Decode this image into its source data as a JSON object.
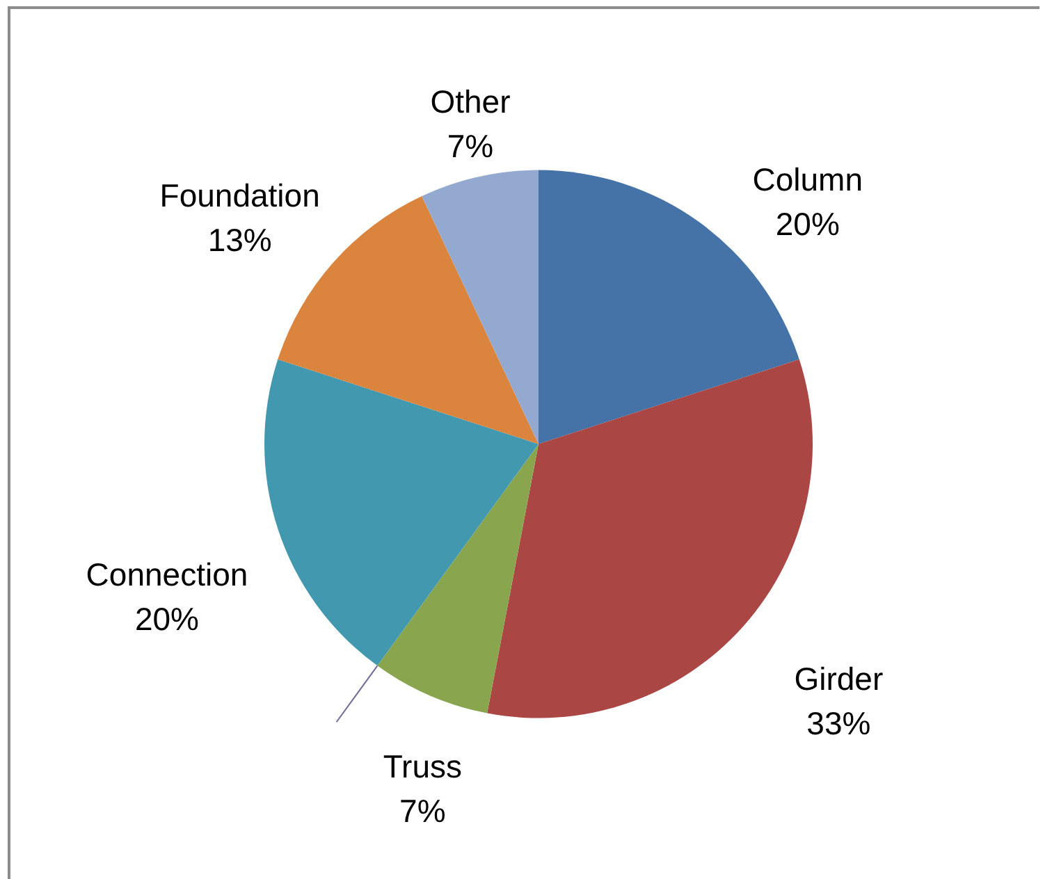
{
  "chart_data": {
    "type": "pie",
    "categories": [
      "Column",
      "Girder",
      "Truss",
      "Connection",
      "Foundation",
      "Other"
    ],
    "values": [
      20,
      33,
      7,
      20,
      13,
      7
    ],
    "colors": [
      "#4572a7",
      "#aa4643",
      "#89a54e",
      "#4198af",
      "#db843d",
      "#93a9cf"
    ],
    "value_labels": [
      "20%",
      "33%",
      "7%",
      "20%",
      "13%",
      "7%"
    ]
  }
}
